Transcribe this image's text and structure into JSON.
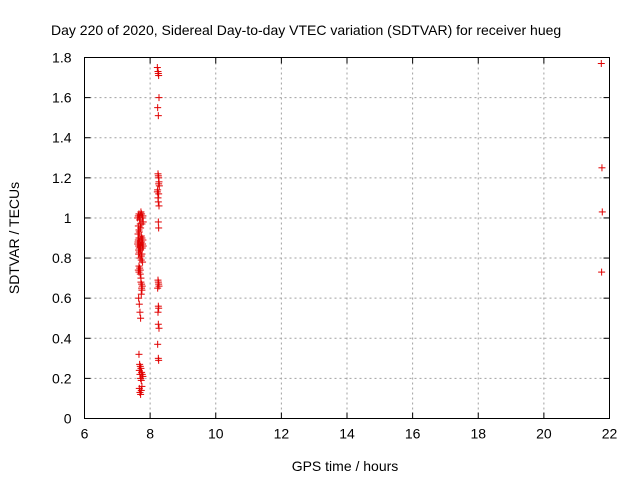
{
  "chart_data": {
    "type": "scatter",
    "title": "Day 220 of 2020, Sidereal Day-to-day VTEC variation (SDTVAR) for receiver hueg",
    "xlabel": "GPS time / hours",
    "ylabel": "SDTVAR / TECUs",
    "xlim": [
      6,
      22
    ],
    "ylim": [
      0,
      1.8
    ],
    "xticks": [
      6,
      8,
      10,
      12,
      14,
      16,
      18,
      20,
      22
    ],
    "yticks": [
      0,
      0.2,
      0.4,
      0.6,
      0.8,
      1,
      1.2,
      1.4,
      1.6,
      1.8
    ],
    "xtick_labels": [
      "6",
      "8",
      "10",
      "12",
      "14",
      "16",
      "18",
      "20",
      "22"
    ],
    "ytick_labels": [
      "0",
      "0.2",
      "0.4",
      "0.6",
      "0.8",
      "1",
      "1.2",
      "1.4",
      "1.6",
      "1.8"
    ],
    "grid": true,
    "marker": "+",
    "color": "#e00000",
    "series": [
      {
        "name": "SDTVAR",
        "x": [
          7.62,
          7.63,
          7.64,
          7.65,
          7.66,
          7.67,
          7.68,
          7.69,
          7.7,
          7.71,
          7.72,
          7.73,
          7.74,
          7.75,
          7.76,
          7.77,
          7.78,
          7.79,
          7.62,
          7.64,
          7.66,
          7.68,
          7.7,
          7.72,
          7.74,
          7.76,
          7.78,
          7.63,
          7.67,
          7.71,
          7.75,
          7.79,
          7.65,
          7.69,
          7.73,
          7.77,
          7.64,
          7.66,
          7.7,
          7.72,
          7.74,
          7.76,
          7.65,
          7.67,
          7.69,
          7.71,
          7.73,
          7.75,
          7.66,
          7.68,
          7.7,
          7.72,
          7.74,
          7.76,
          7.78,
          7.67,
          7.69,
          7.71,
          7.73,
          7.75,
          7.64,
          7.66,
          7.68,
          7.7,
          7.65,
          7.67,
          7.69,
          7.71,
          7.73,
          7.75,
          7.66,
          7.68,
          7.7,
          7.72,
          7.74,
          7.67,
          7.69,
          7.71,
          7.73,
          8.22,
          8.24,
          8.25,
          8.26,
          8.27,
          8.23,
          8.25,
          8.24,
          8.25,
          8.26,
          8.27,
          8.28,
          8.23,
          8.26,
          8.24,
          8.25,
          8.27,
          8.22,
          8.26,
          8.25,
          8.26,
          8.24,
          8.25,
          8.26,
          8.27,
          8.23,
          8.25,
          8.26,
          8.24,
          8.25,
          8.27,
          8.23,
          8.25,
          8.26,
          21.75,
          21.77,
          21.78,
          21.76
        ],
        "y": [
          0.87,
          0.88,
          0.89,
          0.86,
          0.9,
          0.85,
          0.88,
          0.87,
          0.89,
          0.84,
          0.86,
          0.91,
          0.88,
          0.9,
          0.85,
          0.87,
          0.89,
          0.86,
          1.0,
          1.01,
          1.02,
          1.0,
          1.01,
          1.03,
          1.02,
          1.0,
          1.01,
          0.92,
          0.93,
          0.95,
          0.97,
          0.98,
          0.82,
          0.8,
          0.79,
          0.78,
          0.74,
          0.73,
          0.74,
          0.68,
          0.67,
          0.66,
          0.6,
          0.57,
          0.53,
          0.5,
          0.62,
          0.64,
          0.32,
          0.27,
          0.26,
          0.25,
          0.23,
          0.22,
          0.21,
          0.15,
          0.13,
          0.12,
          0.14,
          0.16,
          0.96,
          0.94,
          0.99,
          0.97,
          0.84,
          0.83,
          0.85,
          0.86,
          0.81,
          0.82,
          0.76,
          0.75,
          0.72,
          0.7,
          0.65,
          0.24,
          0.22,
          0.2,
          0.19,
          1.75,
          1.73,
          1.72,
          1.71,
          1.6,
          1.55,
          1.51,
          1.22,
          1.21,
          1.2,
          1.18,
          1.16,
          1.14,
          1.12,
          1.1,
          1.08,
          1.06,
          1.13,
          1.17,
          0.98,
          0.95,
          0.69,
          0.68,
          0.67,
          0.66,
          0.65,
          0.56,
          0.55,
          0.53,
          0.47,
          0.45,
          0.37,
          0.3,
          0.29,
          1.77,
          1.25,
          1.03,
          0.73
        ]
      }
    ]
  }
}
